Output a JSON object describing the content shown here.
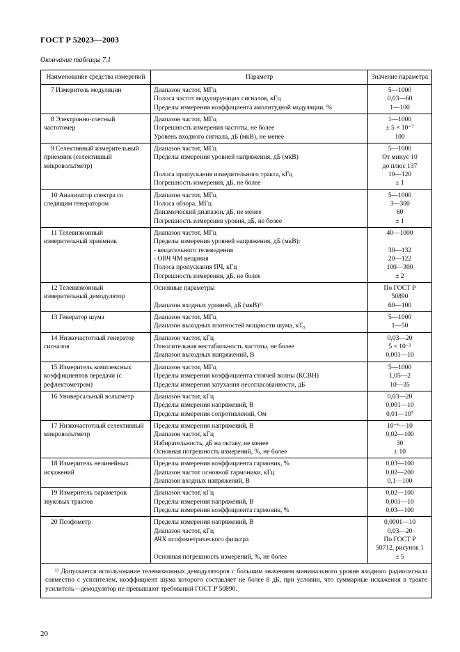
{
  "doc_title": "ГОСТ Р 52023—2003",
  "caption": "Окончание таблицы 7.1",
  "headers": {
    "name": "Наименование средства измерений",
    "param": "Параметр",
    "value": "Значение параметра"
  },
  "rows": [
    {
      "name": "7 Измеритель модуляции",
      "params": [
        "Диапазон частот, МГц",
        "Полоса частот модулирующих сигналов, кГц",
        "Пределы измерения коэффициента амплитудной модуляции, %"
      ],
      "values": [
        "5—1000",
        "0,03—60",
        "1—100"
      ]
    },
    {
      "name": "8 Электронно-счетный частотомер",
      "params": [
        "Диапазон частот, МГц",
        "Погрешность измерения частоты, не более",
        "Уровень входного сигнала, дБ (мкВ), не менее"
      ],
      "values": [
        "1—1000",
        "± 5 × 10⁻⁷",
        "100"
      ]
    },
    {
      "name": "9 Селективный измерительный приемник (селективный микровольтметр)",
      "params": [
        "Диапазон частот, МГц",
        "Пределы измерения уровней напряжения, дБ (мкВ)",
        "",
        "Полоса пропускания измерительного тракта, кГц",
        "Погрешность измерения, дБ, не более"
      ],
      "values": [
        "5—1000",
        "От минус 10",
        "до плюс 137",
        "10—120",
        "± 1"
      ]
    },
    {
      "name": "10 Анализатор спектра со следящим генератором",
      "params": [
        "Диапазон частот, МГц",
        "Полоса обзора, МГц",
        "Динамический диапазон, дБ, не менее",
        "Погрешность измерения уровня, дБ, не более"
      ],
      "values": [
        "5—1000",
        "3—300",
        "60",
        "± 1"
      ]
    },
    {
      "name": "11 Телевизионный измерительный приемник",
      "params": [
        "Диапазон частот, МГц",
        "Пределы измерения уровней напряжения, дБ (мкВ):",
        "- вещательного телевидения",
        "- ОВЧ ЧМ вещания",
        "Полоса пропускания ПЧ, кГц",
        "Погрешность измерения, дБ, не более"
      ],
      "values": [
        "40—1000",
        "",
        "30—132",
        "20—122",
        "100—300",
        "± 2"
      ]
    },
    {
      "name": "12 Телевизионный измерительный демодулятор",
      "params": [
        "Основные параметры",
        "",
        "Диапазон входных уровней, дБ (мкВ)¹⁾"
      ],
      "values": [
        "По ГОСТ Р",
        "50890",
        "60—100"
      ]
    },
    {
      "name": "13 Генератор шума",
      "params": [
        "Диапазон частот, МГц",
        "Диапазон выходных плотностей мощности шума, кТ₀"
      ],
      "values": [
        "5—1000",
        "1—50"
      ]
    },
    {
      "name": "14 Низкочастотный генератор сигналов",
      "params": [
        "Диапазон частот, кГц",
        "Относительная нестабильность частоты, не более",
        "Диапазон выходных напряжений, В"
      ],
      "values": [
        "0,03—20",
        "5 × 10⁻³",
        "0,001—10"
      ]
    },
    {
      "name": "15 Измеритель комплексных коэффициентов передачи (с рефлектометром)",
      "params": [
        "Диапазон частот, МГц",
        "Пределы измерения коэффициента стоячей волны (КСВН)",
        "Пределы измерения затухания несогласованности, дБ"
      ],
      "values": [
        "5—1000",
        "1,05—2",
        "10—35"
      ]
    },
    {
      "name": "16 Универсальный вольтметр",
      "params": [
        "Диапазон частот, кГц",
        "Пределы измерения напряжений, В",
        "Пределы измерения сопротивлений, Ом"
      ],
      "values": [
        "0,03—20",
        "0,001—10",
        "0,01—10⁷"
      ]
    },
    {
      "name": "17 Низкочастотный селективный микровольтметр",
      "params": [
        "Пределы измерения напряжений, В",
        "Диапазон частот, кГц",
        "Избирательность, дБ на октаву, не менее",
        "Основная погрешность измерений, %, не более"
      ],
      "values": [
        "10⁻⁶—10",
        "0,02—100",
        "30",
        "± 10"
      ]
    },
    {
      "name": "18 Измеритель нелинейных искажений",
      "params": [
        "Пределы измерения коэффициента гармоник, %",
        "Диапазон частот основной гармоники, кГц",
        "Диапазон входных напряжений, В"
      ],
      "values": [
        "0,03—100",
        "0,02—200",
        "0,1—100"
      ]
    },
    {
      "name": "19 Измеритель параметров звуковых трактов",
      "params": [
        "Диапазон частот, кГц",
        "Пределы измерения напряжений, В",
        "Пределы измерения коэффициента гармоник, %"
      ],
      "values": [
        "0,02—100",
        "0,001—10",
        "0,03—100"
      ]
    },
    {
      "name": "20 Псофометр",
      "params": [
        "Пределы измерения напряжений, В",
        "Диапазон частот, кГц",
        "АЧХ псофометрического фильтра",
        "",
        "Основная погрешность измерений, %, не более"
      ],
      "values": [
        "0,0001—10",
        "0,03—20",
        "По ГОСТ Р",
        "50712, рисунок 1",
        "± 5"
      ]
    }
  ],
  "footnote": "¹⁾ Допускается использование телевизионных демодуляторов с большим значением минимального уровня входного радиосигнала совместно с усилителем, коэффициент шума которого составляет не более 8 дБ, при условии, что суммарные искажения в тракте усилитель—демодулятор не превышают требований ГОСТ Р 50890.",
  "page_number": "20"
}
